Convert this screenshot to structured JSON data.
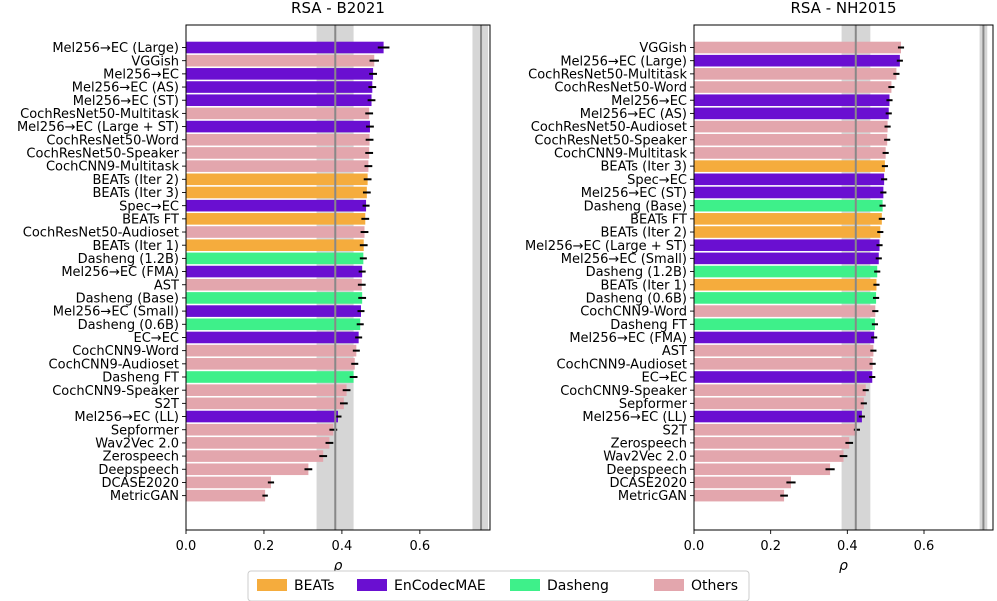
{
  "legend": {
    "placement": "bottom-center",
    "items": [
      {
        "label": "BEATs",
        "color": "#f5ac3d"
      },
      {
        "label": "EnCodecMAE",
        "color": "#6a0fd1"
      },
      {
        "label": "Dasheng",
        "color": "#3ef08a"
      },
      {
        "label": "Others",
        "color": "#e3a6ad"
      }
    ]
  },
  "chart_data": [
    {
      "type": "bar",
      "orientation": "horizontal",
      "title": "RSA - B2021",
      "xlabel": "ρ",
      "ylabel": "",
      "xlim": [
        0.0,
        0.78
      ],
      "xticks": [
        0.0,
        0.2,
        0.4,
        0.6
      ],
      "xtick_labels": [
        "0.0",
        "0.2",
        "0.4",
        "0.6"
      ],
      "reference_line": 0.383,
      "reference_band": [
        0.335,
        0.43
      ],
      "ceiling_line": 0.757,
      "ceiling_band": [
        0.735,
        0.775
      ],
      "bars": [
        {
          "label": "Mel256→EC (Large)",
          "value": 0.507,
          "err": 0.015,
          "group": "EnCodecMAE"
        },
        {
          "label": "VGGish",
          "value": 0.483,
          "err": 0.012,
          "group": "Others"
        },
        {
          "label": "Mel256→EC",
          "value": 0.48,
          "err": 0.01,
          "group": "EnCodecMAE"
        },
        {
          "label": "Mel256→EC (AS)",
          "value": 0.478,
          "err": 0.01,
          "group": "EnCodecMAE"
        },
        {
          "label": "Mel256→EC (ST)",
          "value": 0.476,
          "err": 0.01,
          "group": "EnCodecMAE"
        },
        {
          "label": "CochResNet50-Multitask",
          "value": 0.47,
          "err": 0.01,
          "group": "Others"
        },
        {
          "label": "Mel256→EC (Large + ST)",
          "value": 0.472,
          "err": 0.01,
          "group": "EnCodecMAE"
        },
        {
          "label": "CochResNet50-Word",
          "value": 0.471,
          "err": 0.01,
          "group": "Others"
        },
        {
          "label": "CochResNet50-Speaker",
          "value": 0.47,
          "err": 0.01,
          "group": "Others"
        },
        {
          "label": "CochCNN9-Multitask",
          "value": 0.468,
          "err": 0.01,
          "group": "Others"
        },
        {
          "label": "BEATs (Iter 2)",
          "value": 0.466,
          "err": 0.01,
          "group": "BEATs"
        },
        {
          "label": "BEATs (Iter 3)",
          "value": 0.464,
          "err": 0.01,
          "group": "BEATs"
        },
        {
          "label": "Spec→EC",
          "value": 0.462,
          "err": 0.009,
          "group": "EnCodecMAE"
        },
        {
          "label": "BEATs FT",
          "value": 0.46,
          "err": 0.01,
          "group": "BEATs"
        },
        {
          "label": "CochResNet50-Audioset",
          "value": 0.458,
          "err": 0.01,
          "group": "Others"
        },
        {
          "label": "BEATs (Iter 1)",
          "value": 0.456,
          "err": 0.01,
          "group": "BEATs"
        },
        {
          "label": "Dasheng (1.2B)",
          "value": 0.455,
          "err": 0.009,
          "group": "Dasheng"
        },
        {
          "label": "Mel256→EC (FMA)",
          "value": 0.452,
          "err": 0.009,
          "group": "EnCodecMAE"
        },
        {
          "label": "AST",
          "value": 0.451,
          "err": 0.01,
          "group": "Others"
        },
        {
          "label": "Dasheng (Base)",
          "value": 0.452,
          "err": 0.01,
          "group": "Dasheng"
        },
        {
          "label": "Mel256→EC (Small)",
          "value": 0.449,
          "err": 0.009,
          "group": "EnCodecMAE"
        },
        {
          "label": "Dasheng (0.6B)",
          "value": 0.447,
          "err": 0.009,
          "group": "Dasheng"
        },
        {
          "label": "EC→EC",
          "value": 0.443,
          "err": 0.009,
          "group": "EnCodecMAE"
        },
        {
          "label": "CochCNN9-Word",
          "value": 0.437,
          "err": 0.009,
          "group": "Others"
        },
        {
          "label": "CochCNN9-Audioset",
          "value": 0.433,
          "err": 0.009,
          "group": "Others"
        },
        {
          "label": "Dasheng FT",
          "value": 0.43,
          "err": 0.01,
          "group": "Dasheng"
        },
        {
          "label": "CochCNN9-Speaker",
          "value": 0.412,
          "err": 0.01,
          "group": "Others"
        },
        {
          "label": "S2T",
          "value": 0.405,
          "err": 0.01,
          "group": "Others"
        },
        {
          "label": "Mel256→EC (LL)",
          "value": 0.39,
          "err": 0.009,
          "group": "EnCodecMAE"
        },
        {
          "label": "Sepformer",
          "value": 0.378,
          "err": 0.01,
          "group": "Others"
        },
        {
          "label": "Wav2Vec 2.0",
          "value": 0.368,
          "err": 0.01,
          "group": "Others"
        },
        {
          "label": "Zerospeech",
          "value": 0.352,
          "err": 0.01,
          "group": "Others"
        },
        {
          "label": "Deepspeech",
          "value": 0.314,
          "err": 0.01,
          "group": "Others"
        },
        {
          "label": "DCASE2020",
          "value": 0.218,
          "err": 0.008,
          "group": "Others"
        },
        {
          "label": "MetricGAN",
          "value": 0.203,
          "err": 0.007,
          "group": "Others"
        }
      ]
    },
    {
      "type": "bar",
      "orientation": "horizontal",
      "title": "RSA - NH2015",
      "xlabel": "ρ",
      "ylabel": "",
      "xlim": [
        0.0,
        0.78
      ],
      "xticks": [
        0.0,
        0.2,
        0.4,
        0.6
      ],
      "xtick_labels": [
        "0.0",
        "0.2",
        "0.4",
        "0.6"
      ],
      "reference_line": 0.422,
      "reference_band": [
        0.385,
        0.46
      ],
      "ceiling_line": 0.755,
      "ceiling_band": [
        0.745,
        0.765
      ],
      "bars": [
        {
          "label": "VGGish",
          "value": 0.54,
          "err": 0.008,
          "group": "Others"
        },
        {
          "label": "Mel256→EC (Large)",
          "value": 0.537,
          "err": 0.008,
          "group": "EnCodecMAE"
        },
        {
          "label": "CochResNet50-Multitask",
          "value": 0.528,
          "err": 0.008,
          "group": "Others"
        },
        {
          "label": "CochResNet50-Word",
          "value": 0.515,
          "err": 0.008,
          "group": "Others"
        },
        {
          "label": "Mel256→EC",
          "value": 0.51,
          "err": 0.008,
          "group": "EnCodecMAE"
        },
        {
          "label": "Mel256→EC (AS)",
          "value": 0.508,
          "err": 0.008,
          "group": "EnCodecMAE"
        },
        {
          "label": "CochResNet50-Audioset",
          "value": 0.505,
          "err": 0.008,
          "group": "Others"
        },
        {
          "label": "CochResNet50-Speaker",
          "value": 0.504,
          "err": 0.008,
          "group": "Others"
        },
        {
          "label": "CochCNN9-Multitask",
          "value": 0.5,
          "err": 0.008,
          "group": "Others"
        },
        {
          "label": "BEATs (Iter 3)",
          "value": 0.498,
          "err": 0.008,
          "group": "BEATs"
        },
        {
          "label": "Spec→EC",
          "value": 0.496,
          "err": 0.008,
          "group": "EnCodecMAE"
        },
        {
          "label": "Mel256→EC (ST)",
          "value": 0.494,
          "err": 0.008,
          "group": "EnCodecMAE"
        },
        {
          "label": "Dasheng (Base)",
          "value": 0.492,
          "err": 0.008,
          "group": "Dasheng"
        },
        {
          "label": "BEATs FT",
          "value": 0.49,
          "err": 0.008,
          "group": "BEATs"
        },
        {
          "label": "BEATs (Iter 2)",
          "value": 0.486,
          "err": 0.008,
          "group": "BEATs"
        },
        {
          "label": "Mel256→EC (Large + ST)",
          "value": 0.484,
          "err": 0.008,
          "group": "EnCodecMAE"
        },
        {
          "label": "Mel256→EC (Small)",
          "value": 0.482,
          "err": 0.008,
          "group": "EnCodecMAE"
        },
        {
          "label": "Dasheng (1.2B)",
          "value": 0.478,
          "err": 0.008,
          "group": "Dasheng"
        },
        {
          "label": "BEATs (Iter 1)",
          "value": 0.476,
          "err": 0.008,
          "group": "BEATs"
        },
        {
          "label": "Dasheng (0.6B)",
          "value": 0.475,
          "err": 0.008,
          "group": "Dasheng"
        },
        {
          "label": "CochCNN9-Word",
          "value": 0.473,
          "err": 0.008,
          "group": "Others"
        },
        {
          "label": "Dasheng FT",
          "value": 0.472,
          "err": 0.008,
          "group": "Dasheng"
        },
        {
          "label": "Mel256→EC (FMA)",
          "value": 0.47,
          "err": 0.008,
          "group": "EnCodecMAE"
        },
        {
          "label": "AST",
          "value": 0.468,
          "err": 0.008,
          "group": "Others"
        },
        {
          "label": "CochCNN9-Audioset",
          "value": 0.466,
          "err": 0.008,
          "group": "Others"
        },
        {
          "label": "EC→EC",
          "value": 0.465,
          "err": 0.008,
          "group": "EnCodecMAE"
        },
        {
          "label": "CochCNN9-Speaker",
          "value": 0.448,
          "err": 0.008,
          "group": "Others"
        },
        {
          "label": "Sepformer",
          "value": 0.443,
          "err": 0.008,
          "group": "Others"
        },
        {
          "label": "Mel256→EC (LL)",
          "value": 0.438,
          "err": 0.008,
          "group": "EnCodecMAE"
        },
        {
          "label": "S2T",
          "value": 0.425,
          "err": 0.008,
          "group": "Others"
        },
        {
          "label": "Zerospeech",
          "value": 0.405,
          "err": 0.01,
          "group": "Others"
        },
        {
          "label": "Wav2Vec 2.0",
          "value": 0.39,
          "err": 0.01,
          "group": "Others"
        },
        {
          "label": "Deepspeech",
          "value": 0.355,
          "err": 0.012,
          "group": "Others"
        },
        {
          "label": "DCASE2020",
          "value": 0.253,
          "err": 0.012,
          "group": "Others"
        },
        {
          "label": "MetricGAN",
          "value": 0.235,
          "err": 0.01,
          "group": "Others"
        }
      ]
    }
  ]
}
